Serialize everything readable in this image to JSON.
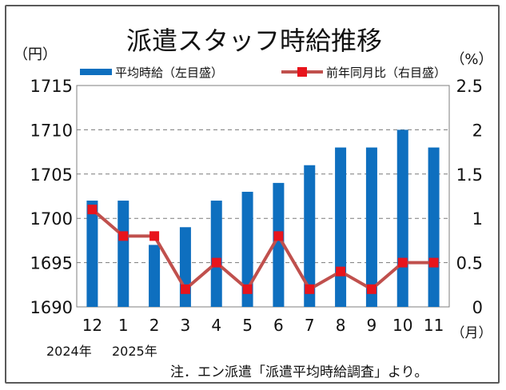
{
  "chart_data": {
    "type": "bar",
    "title": "派遣スタッフ時給推移",
    "categories": [
      "12",
      "1",
      "2",
      "3",
      "4",
      "5",
      "6",
      "7",
      "8",
      "9",
      "10",
      "11"
    ],
    "year_labels": [
      "2024年",
      "2025年"
    ],
    "x_unit": "（月）",
    "left_axis": {
      "unit": "（円）",
      "ylim": [
        1690,
        1715
      ],
      "ticks": [
        "1690",
        "1695",
        "1700",
        "1705",
        "1710",
        "1715"
      ],
      "tick_values": [
        1690,
        1695,
        1700,
        1705,
        1710,
        1715
      ]
    },
    "right_axis": {
      "unit": "（%）",
      "ylim": [
        0,
        2.5
      ],
      "ticks": [
        "0",
        "0.5",
        "1",
        "1.5",
        "2",
        "2.5"
      ],
      "tick_values": [
        0,
        0.5,
        1,
        1.5,
        2,
        2.5
      ]
    },
    "series": [
      {
        "name": "平均時給（左目盛）",
        "kind": "bar",
        "axis": "left",
        "color": "#0e6fbf",
        "values": [
          1702,
          1702,
          1697,
          1699,
          1702,
          1703,
          1704,
          1706,
          1708,
          1708,
          1710,
          1708
        ]
      },
      {
        "name": "前年同月比（右目盛）",
        "kind": "line",
        "axis": "right",
        "color": "#c0504d",
        "marker_color": "#e8141c",
        "values": [
          1.1,
          0.8,
          0.8,
          0.2,
          0.5,
          0.2,
          0.8,
          0.2,
          0.4,
          0.2,
          0.5,
          0.5
        ]
      }
    ],
    "grid": "horizontal-dashed",
    "legend": "top"
  },
  "note": "注．エン派遣「派遣平均時給調査」より。"
}
